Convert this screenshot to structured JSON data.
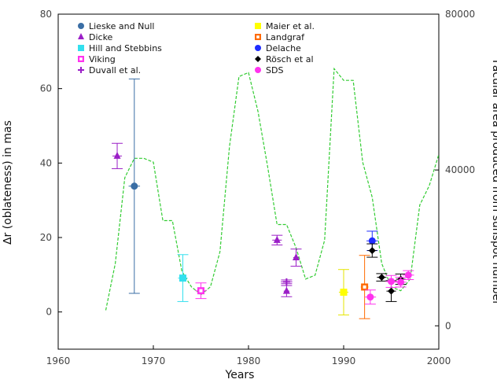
{
  "chart_data": {
    "type": "scatter",
    "xlabel": "Years",
    "ylabel": "∆r (oblateness) in mas",
    "y2label": "Facular area produced from sunspot number",
    "xlim": [
      1960,
      2000
    ],
    "ylim": [
      -10,
      80
    ],
    "y2lim": [
      -6000,
      80000
    ],
    "xticks": [
      "1960",
      "1970",
      "1980",
      "1990",
      "2000"
    ],
    "yticks": [
      "0",
      "20",
      "40",
      "60",
      "80"
    ],
    "y2ticks": [
      "0",
      "40000",
      "80000"
    ],
    "grid": false,
    "legend_position": "top-inside",
    "series": [
      {
        "name": "Lieske and Null",
        "color": "#3a6ea5",
        "marker": "circle",
        "points": [
          {
            "x": 1968.0,
            "y": 33.8,
            "err": 28.8,
            "xerr": 0.6
          }
        ]
      },
      {
        "name": "Dicke",
        "color": "#9b1fc7",
        "marker": "triangle",
        "points": [
          {
            "x": 1966.2,
            "y": 41.9,
            "err": 3.4,
            "xerr": 0.5
          },
          {
            "x": 1983.0,
            "y": 19.3,
            "err": 1.3,
            "xerr": 0.5
          },
          {
            "x": 1984.0,
            "y": 5.6,
            "err": 1.5,
            "xerr": 0.3
          },
          {
            "x": 1985.0,
            "y": 14.6,
            "err": 2.3,
            "xerr": 0.3
          }
        ]
      },
      {
        "name": "Hill and Stebbins",
        "color": "#33e0ee",
        "marker": "square",
        "points": [
          {
            "x": 1973.1,
            "y": 9.1,
            "err": 6.3,
            "xerr": 0.5
          }
        ]
      },
      {
        "name": "Viking",
        "color": "#ff33ee",
        "marker": "square-open",
        "points": [
          {
            "x": 1975.0,
            "y": 5.7,
            "err": 2.1,
            "xerr": 0.6
          }
        ]
      },
      {
        "name": "Duvall et al.",
        "color": "#9b1fc7",
        "marker": "plus",
        "points": [
          {
            "x": 1984.0,
            "y": 8.1,
            "err": 0.5,
            "xerr": 0.6
          }
        ]
      },
      {
        "name": "Maier et al.",
        "color": "#ffff00",
        "marker": "square",
        "points": [
          {
            "x": 1990.0,
            "y": 5.3,
            "err": 6.1,
            "xerr": 0.5
          }
        ]
      },
      {
        "name": "Landgraf",
        "color": "#ff6a00",
        "marker": "square-open",
        "points": [
          {
            "x": 1992.2,
            "y": 6.7,
            "err": 8.5,
            "xerr": 0.4
          }
        ]
      },
      {
        "name": "Delache",
        "color": "#1f2dff",
        "marker": "circle",
        "points": [
          {
            "x": 1993.0,
            "y": 19.1,
            "err": 2.6,
            "xerr": 0.6
          }
        ]
      },
      {
        "name": "Rösch et al",
        "color": "#000000",
        "marker": "diamond",
        "points": [
          {
            "x": 1993.0,
            "y": 16.5,
            "err": 1.8,
            "xerr": 0.5
          },
          {
            "x": 1994.0,
            "y": 9.3,
            "err": 1.0,
            "xerr": 0.5
          },
          {
            "x": 1995.0,
            "y": 5.6,
            "err": 2.8,
            "xerr": 0.5
          },
          {
            "x": 1996.0,
            "y": 8.8,
            "err": 1.4,
            "xerr": 0.5
          }
        ]
      },
      {
        "name": "SDS",
        "color": "#ff33ee",
        "marker": "circle",
        "points": [
          {
            "x": 1992.8,
            "y": 4.0,
            "err": 1.9,
            "xerr": 0.6
          },
          {
            "x": 1995.0,
            "y": 8.2,
            "err": 1.6,
            "xerr": 0.6
          },
          {
            "x": 1996.0,
            "y": 8.0,
            "err": 1.3,
            "xerr": 0.6
          },
          {
            "x": 1996.8,
            "y": 9.9,
            "err": 1.2,
            "xerr": 0.6
          }
        ]
      }
    ],
    "facular_curve": {
      "color": "#33cc33",
      "x": [
        1965,
        1966,
        1967,
        1968,
        1969,
        1970,
        1971,
        1972,
        1973,
        1974,
        1975,
        1976,
        1977,
        1978,
        1979,
        1980,
        1981,
        1982,
        1983,
        1984,
        1985,
        1986,
        1987,
        1988,
        1989,
        1990,
        1991,
        1992,
        1993,
        1994,
        1995,
        1996,
        1997,
        1998,
        1999,
        2000
      ],
      "y": [
        4000,
        16000,
        38000,
        43000,
        43000,
        42000,
        27000,
        27000,
        14000,
        10000,
        8000,
        10000,
        19000,
        46000,
        64000,
        65000,
        55000,
        41000,
        26000,
        26000,
        20000,
        12000,
        13000,
        22000,
        66000,
        63000,
        63000,
        42000,
        33000,
        16000,
        10000,
        9000,
        12000,
        31000,
        36000,
        44000
      ]
    }
  }
}
